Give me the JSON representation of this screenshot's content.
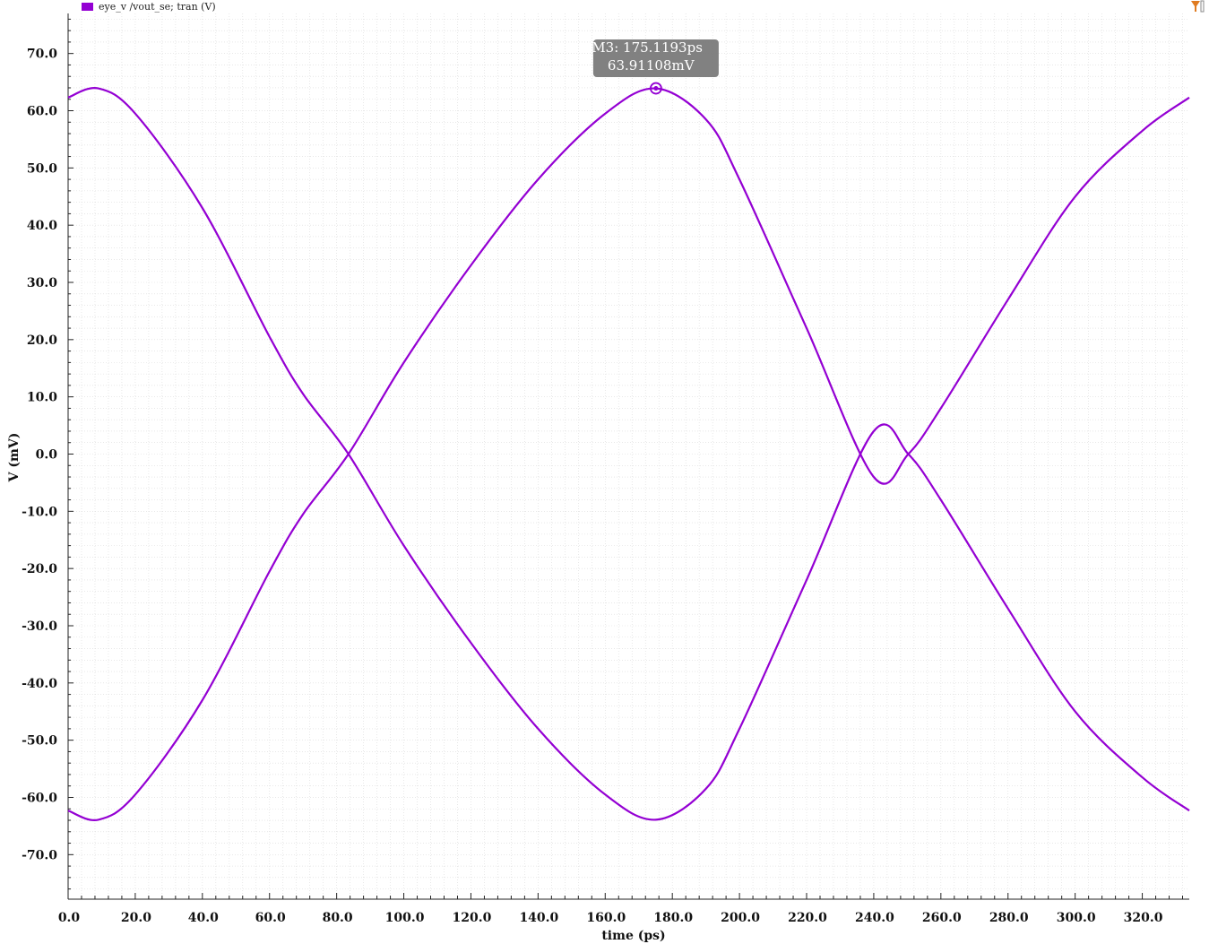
{
  "legend": {
    "label": "eye_v /vout_se; tran (V)",
    "color": "#9400D3"
  },
  "toolbar": {
    "icon": "filter-icon",
    "icon_color": "#E07B20"
  },
  "marker": {
    "name": "M3",
    "line1": "M3: 175.1193ps",
    "line2": "63.91108mV",
    "x": 175.1193,
    "y": 63.91108
  },
  "colors": {
    "trace": "#9400D3",
    "grid": "#d9d9d9",
    "marker_box": "#7a7a7a"
  },
  "chart_data": {
    "type": "line",
    "title": "",
    "xlabel": "time (ps)",
    "ylabel": "V (mV)",
    "xlim": [
      0,
      334
    ],
    "ylim": [
      -77,
      77
    ],
    "grid": true,
    "legend_position": "top-left",
    "xticks": [
      0,
      20,
      40,
      60,
      80,
      100,
      120,
      140,
      160,
      180,
      200,
      220,
      240,
      260,
      280,
      300,
      320
    ],
    "xtick_labels": [
      "0.0",
      "20.0",
      "40.0",
      "60.0",
      "80.0",
      "100.0",
      "120.0",
      "140.0",
      "160.0",
      "180.0",
      "200.0",
      "220.0",
      "240.0",
      "260.0",
      "280.0",
      "300.0",
      "320.0"
    ],
    "yticks": [
      70,
      60,
      50,
      40,
      30,
      20,
      10,
      0,
      -10,
      -20,
      -30,
      -40,
      -50,
      -60,
      -70
    ],
    "ytick_labels": [
      "70.0",
      "60.0",
      "50.0",
      "40.0",
      "30.0",
      "20.0",
      "10.0",
      "0.0",
      "-10.0",
      "-20.0",
      "-30.0",
      "-40.0",
      "-50.0",
      "-60.0",
      "-70.0"
    ],
    "series": [
      {
        "name": "eye_v /vout_se; tran (V)",
        "branch": "falling-rising",
        "x": [
          0,
          9,
          20,
          40,
          60,
          70,
          83.5,
          100,
          120,
          140,
          160,
          175.1,
          190,
          200,
          220,
          240,
          250.3,
          260,
          280,
          300,
          320,
          334
        ],
        "y": [
          62.3,
          63.9,
          59.5,
          43,
          20.5,
          10.5,
          0,
          -16,
          -33,
          -48,
          -59.5,
          -63.9,
          -58.5,
          -48,
          -22,
          4,
          0,
          -8,
          -27,
          -45,
          -56.5,
          -62.3
        ]
      },
      {
        "name": "eye_v /vout_se; tran (V)",
        "branch": "rising-falling",
        "x": [
          0,
          9,
          20,
          40,
          60,
          70,
          83.5,
          100,
          120,
          140,
          160,
          175.1,
          190,
          200,
          220,
          240,
          250.3,
          260,
          280,
          300,
          320,
          334
        ],
        "y": [
          -62.3,
          -63.9,
          -59.5,
          -43,
          -20.5,
          -10.5,
          0,
          16,
          33,
          48,
          59.5,
          63.9,
          58.5,
          48,
          22,
          -4,
          0,
          8,
          27,
          45,
          56.5,
          62.3
        ]
      }
    ]
  }
}
